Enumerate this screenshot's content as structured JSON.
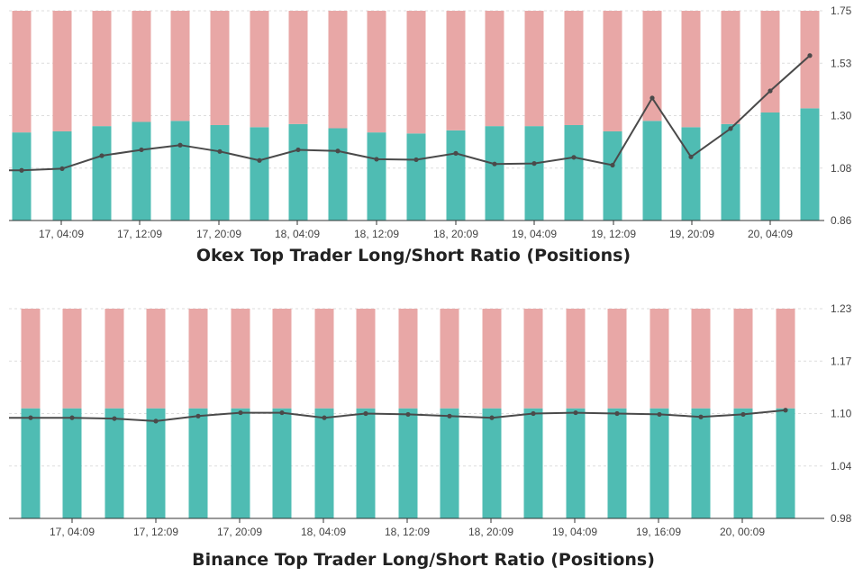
{
  "chart_data": [
    {
      "type": "bar",
      "title": "Okex Top Trader Long/Short Ratio (Positions)",
      "x_tick_labels": [
        "17, 04:09",
        "17, 12:09",
        "17, 20:09",
        "18, 04:09",
        "18, 12:09",
        "18, 20:09",
        "19, 04:09",
        "19, 12:09",
        "19, 20:09",
        "20, 04:09"
      ],
      "y_tick_labels": [
        "1.75",
        "1.53",
        "1.30",
        "1.08",
        "0.86"
      ],
      "bar_scale_ylim": [
        0,
        100
      ],
      "series": [
        {
          "name": "",
          "type": "bar",
          "color": "#4fbcb3",
          "values": [
            42,
            42.5,
            45,
            47,
            47.5,
            45.5,
            44.5,
            46,
            44,
            42,
            41.5,
            43,
            45,
            45,
            45.5,
            42.5,
            47.5,
            44.5,
            46,
            51.5,
            53.5
          ]
        },
        {
          "name": "",
          "type": "bar",
          "color": "#e8a7a6",
          "values": [
            58,
            57.5,
            55,
            53,
            52.5,
            54.5,
            55.5,
            54,
            56,
            58,
            58.5,
            57,
            55,
            55,
            54.5,
            57.5,
            52.5,
            55.5,
            54,
            48.5,
            46.5
          ]
        },
        {
          "name": "",
          "type": "line",
          "color": "#4a4a4a",
          "values": [
            1.073,
            1.08,
            1.135,
            1.16,
            1.18,
            1.153,
            1.115,
            1.16,
            1.155,
            1.12,
            1.118,
            1.145,
            1.1,
            1.102,
            1.128,
            1.095,
            1.38,
            1.13,
            1.25,
            1.41,
            1.56
          ]
        }
      ],
      "ylim": [
        0.86,
        1.75
      ]
    },
    {
      "type": "bar",
      "title": "Binance Top Trader Long/Short Ratio (Positions)",
      "x_tick_labels": [
        "17, 04:09",
        "17, 12:09",
        "17, 20:09",
        "18, 04:09",
        "18, 12:09",
        "18, 20:09",
        "19, 04:09",
        "19, 16:09",
        "20, 00:09"
      ],
      "y_tick_labels": [
        "1.23",
        "1.17",
        "1.10",
        "1.04",
        "0.98"
      ],
      "bar_scale_ylim": [
        0,
        100
      ],
      "series": [
        {
          "name": "",
          "type": "bar",
          "color": "#4fbcb3",
          "values": [
            52.5,
            52.5,
            52.5,
            52.5,
            52.5,
            52.5,
            52.5,
            52.5,
            52.5,
            52.5,
            52.5,
            52.5,
            52.5,
            52.5,
            52.5,
            52.5,
            52.5,
            52.5,
            52.5
          ]
        },
        {
          "name": "",
          "type": "bar",
          "color": "#e8a7a6",
          "values": [
            47.5,
            47.5,
            47.5,
            47.5,
            47.5,
            47.5,
            47.5,
            47.5,
            47.5,
            47.5,
            47.5,
            47.5,
            47.5,
            47.5,
            47.5,
            47.5,
            47.5,
            47.5,
            47.5
          ]
        },
        {
          "name": "",
          "type": "line",
          "color": "#4a4a4a",
          "values": [
            1.1,
            1.1,
            1.099,
            1.096,
            1.102,
            1.106,
            1.106,
            1.1,
            1.105,
            1.104,
            1.102,
            1.1,
            1.105,
            1.106,
            1.105,
            1.104,
            1.101,
            1.104,
            1.109
          ]
        }
      ],
      "ylim": [
        0.98,
        1.23
      ]
    }
  ]
}
